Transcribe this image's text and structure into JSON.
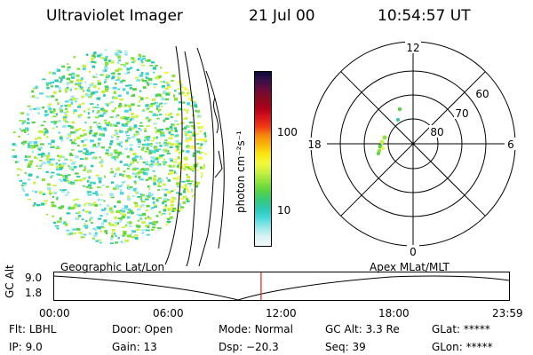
{
  "header": {
    "title": "Ultraviolet Imager",
    "date": "21 Jul 00",
    "time": "10:54:57 UT"
  },
  "colorbar": {
    "unit_label": "photon cm⁻²s⁻¹",
    "ticks": [
      "100",
      "10"
    ],
    "colors": [
      "#0b0b3a",
      "#3d0f4a",
      "#6b0b38",
      "#8a0a20",
      "#b0001a",
      "#d8141c",
      "#f03c14",
      "#f58a0c",
      "#f8b80a",
      "#fbe612",
      "#f4f83c",
      "#c8f040",
      "#8ce23c",
      "#58d244",
      "#36c87c",
      "#2cc8b4",
      "#4ad8dc",
      "#9ce8ec",
      "#d8f2f4",
      "#f4f8f8"
    ]
  },
  "polar_plot": {
    "labels": [
      "12",
      "18",
      "6",
      "0",
      "60",
      "70",
      "80"
    ]
  },
  "timeline": {
    "left_label": "Geographic Lat/Lon",
    "right_label": "Apex MLat/MLT",
    "axis_title": "GC Alt",
    "y_ticks": [
      "9.0",
      "1.8"
    ],
    "x_ticks": [
      "00:00",
      "06:00",
      "12:00",
      "18:00",
      "23:59"
    ],
    "marker_color": "#e02020",
    "marker_time_fraction": 0.4549
  },
  "footer": {
    "filter_label": "Flt:",
    "filter_value": "LBHL",
    "ip_label": "IP:",
    "ip_value": "9.0",
    "door_label": "Door:",
    "door_value": "Open",
    "gain_label": "Gain:",
    "gain_value": "13",
    "mode_label": "Mode:",
    "mode_value": "Normal",
    "dsp_label": "Dsp:",
    "dsp_value": "−20.3",
    "gcalt_label": "GC Alt:",
    "gcalt_value": "3.3 Re",
    "seq_label": "Seq:",
    "seq_value": "39",
    "glat_label": "GLat:",
    "glat_value": "*****",
    "glon_label": "GLon:",
    "glon_value": "*****"
  }
}
